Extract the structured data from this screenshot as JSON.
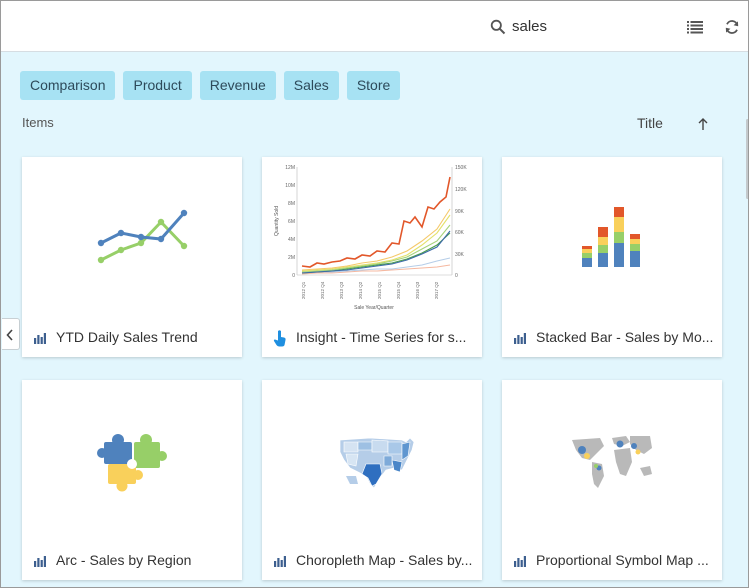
{
  "search": {
    "query": "sales"
  },
  "tags": [
    "Comparison",
    "Product",
    "Revenue",
    "Sales",
    "Store"
  ],
  "items_label": "Items",
  "sort": {
    "field": "Title",
    "direction": "ascending"
  },
  "cards": [
    {
      "title": "YTD Daily Sales Trend",
      "type_icon": "bar-chart-icon",
      "thumbnail": "line-chart-thumbnail"
    },
    {
      "title": "Insight - Time Series for s...",
      "type_icon": "insight-hand-icon",
      "thumbnail": "time-series-chart-thumbnail"
    },
    {
      "title": "Stacked Bar - Sales by Mo...",
      "type_icon": "bar-chart-icon",
      "thumbnail": "stacked-bar-thumbnail"
    },
    {
      "title": "Arc - Sales by Region",
      "type_icon": "bar-chart-icon",
      "thumbnail": "puzzle-thumbnail"
    },
    {
      "title": "Choropleth Map - Sales by...",
      "type_icon": "bar-chart-icon",
      "thumbnail": "us-map-thumbnail"
    },
    {
      "title": "Proportional Symbol Map ...",
      "type_icon": "bar-chart-icon",
      "thumbnail": "world-map-thumbnail"
    }
  ],
  "thumbnail_chart": {
    "y_left_ticks": [
      "12M",
      "10M",
      "8M",
      "6M",
      "4M",
      "2M",
      "0"
    ],
    "y_right_ticks": [
      "150K",
      "120K",
      "90K",
      "60K",
      "30K",
      "0"
    ],
    "x_ticks": [
      "2012 Q1",
      "2012 Q4",
      "2013 Q3",
      "2014 Q2",
      "2015 Q1",
      "2015 Q4",
      "2016 Q3",
      "2017 Q2"
    ],
    "y_label": "Quantity Sold",
    "x_label": "Sale Year/Quarter"
  },
  "colors": {
    "tag_bg": "#a7e2f3",
    "content_bg": "#e2f6fd",
    "accent_blue": "#4f82bd",
    "accent_green": "#97cf68"
  }
}
